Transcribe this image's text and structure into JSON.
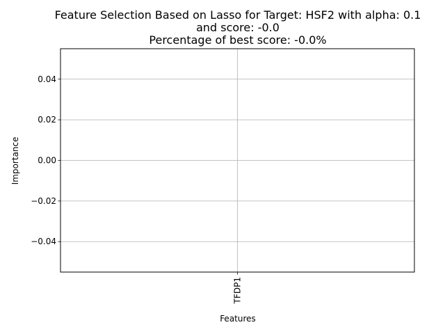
{
  "chart_data": {
    "type": "bar",
    "title_lines": [
      "Feature Selection Based on Lasso for Target: HSF2 with alpha: 0.1",
      "and score: -0.0",
      "Percentage of best score: -0.0%"
    ],
    "xlabel": "Features",
    "ylabel": "Importance",
    "categories": [
      "TFDP1"
    ],
    "values": [
      0.0
    ],
    "ylim": [
      -0.055,
      0.055
    ],
    "yticks": [
      -0.04,
      -0.02,
      0.0,
      0.02,
      0.04
    ],
    "ytick_labels": [
      "−0.04",
      "−0.02",
      "0.00",
      "0.02",
      "0.04"
    ],
    "xlim": [
      -0.5,
      0.5
    ],
    "grid": true,
    "bar_color": "#1f77b4"
  }
}
